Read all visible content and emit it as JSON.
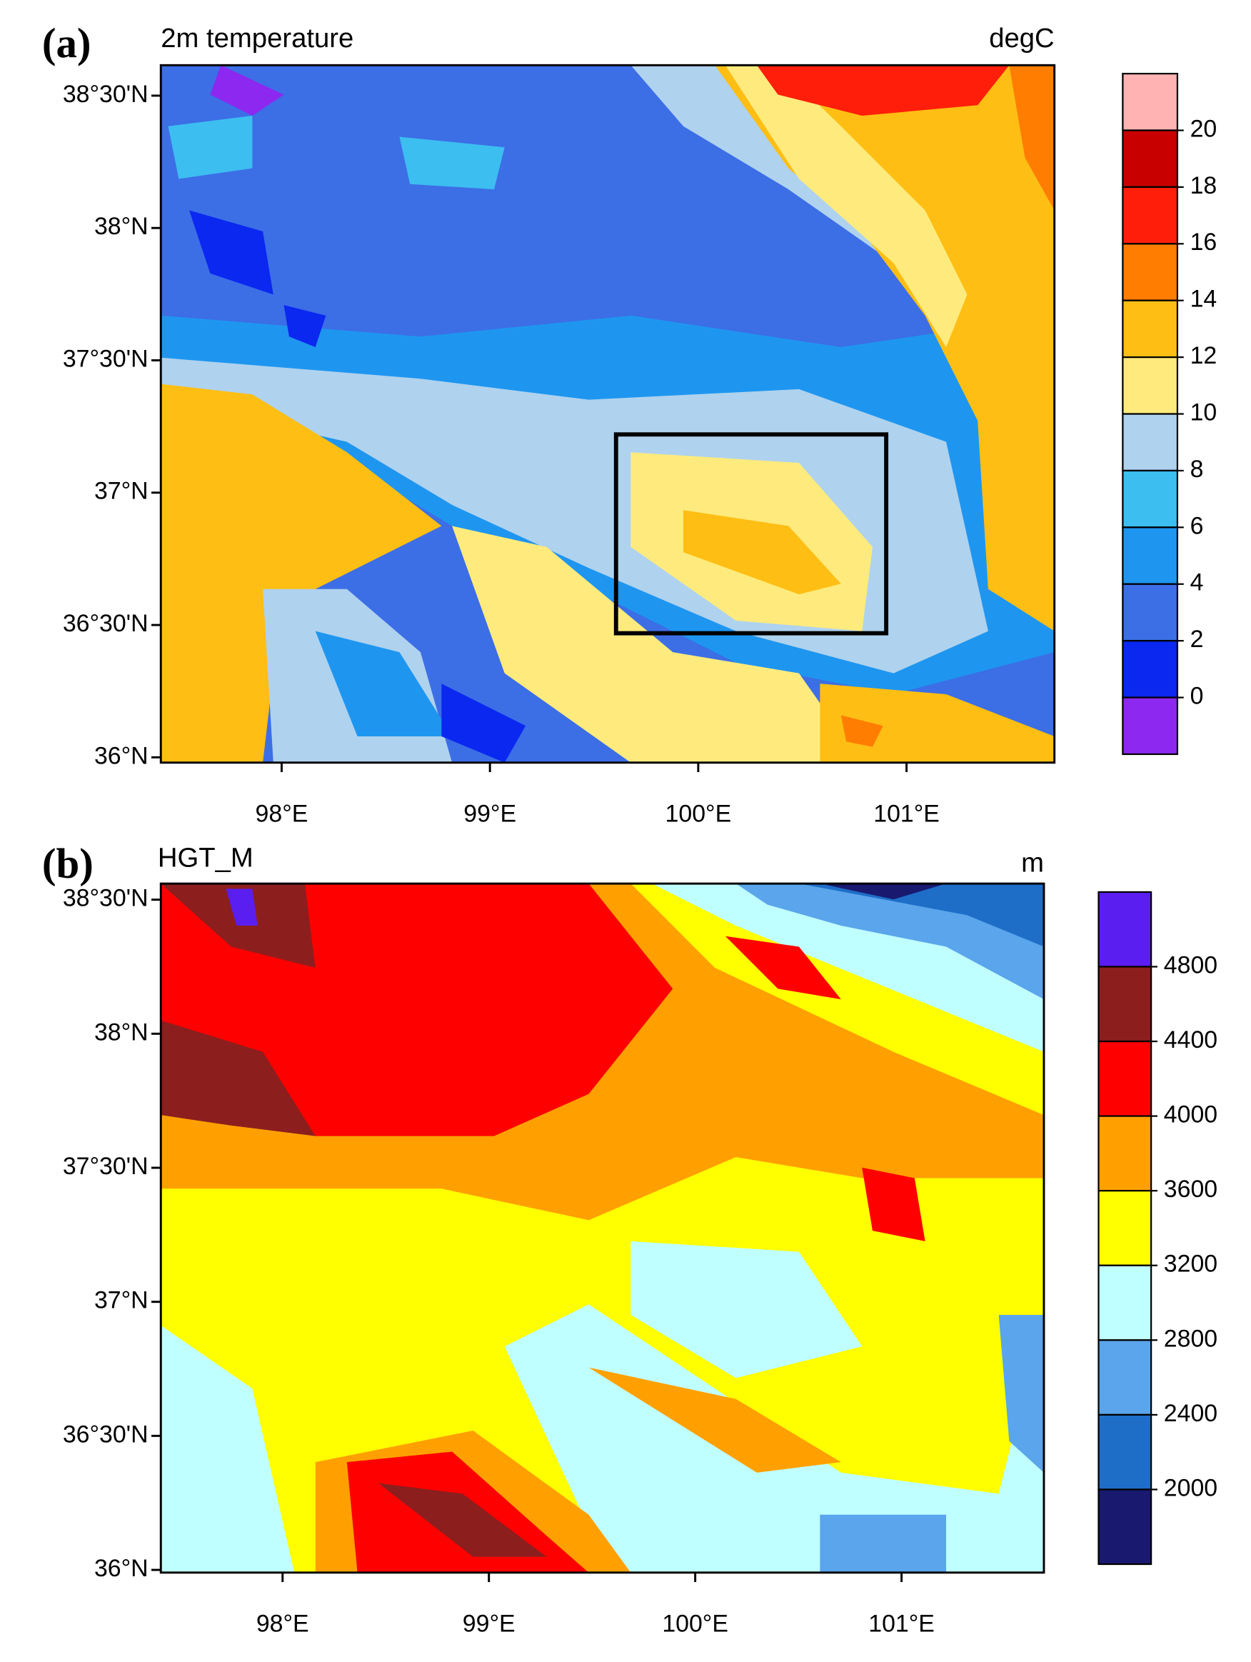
{
  "panels": [
    {
      "label": "(a)",
      "title": "2m temperature",
      "units": "degC",
      "xlim": [
        97.42,
        101.71
      ],
      "ylim": [
        35.98,
        38.615
      ],
      "xticks": [
        {
          "value": 98,
          "label": "98°E"
        },
        {
          "value": 99,
          "label": "99°E"
        },
        {
          "value": 100,
          "label": "100°E"
        },
        {
          "value": 101,
          "label": "101°E"
        }
      ],
      "yticks": [
        {
          "value": 36,
          "label": "36°N"
        },
        {
          "value": 36.5,
          "label": "36°30'N"
        },
        {
          "value": 37,
          "label": "37°N"
        },
        {
          "value": 37.5,
          "label": "37°30'N"
        },
        {
          "value": 38,
          "label": "38°N"
        },
        {
          "value": 38.5,
          "label": "38°30'N"
        }
      ],
      "colorbar": {
        "levels": [
          20,
          18,
          16,
          14,
          12,
          10,
          8,
          6,
          4,
          2,
          0
        ],
        "colors": [
          "#ffb3b3",
          "#c80000",
          "#ff1e0a",
          "#ff7d00",
          "#ffbe14",
          "#ffeb7d",
          "#afd2ee",
          "#3cbef0",
          "#1e96f0",
          "#3c6ee6",
          "#0a28f0",
          "#8c28f0"
        ]
      }
    },
    {
      "label": "(b)",
      "title": "HGT_M",
      "units": "m",
      "xlim": [
        97.41,
        101.69
      ],
      "ylim": [
        35.99,
        38.56
      ],
      "xticks": [
        {
          "value": 98,
          "label": "98°E"
        },
        {
          "value": 99,
          "label": "99°E"
        },
        {
          "value": 100,
          "label": "100°E"
        },
        {
          "value": 101,
          "label": "101°E"
        }
      ],
      "yticks": [
        {
          "value": 36,
          "label": "36°N"
        },
        {
          "value": 36.5,
          "label": "36°30'N"
        },
        {
          "value": 37,
          "label": "37°N"
        },
        {
          "value": 37.5,
          "label": "37°30'N"
        },
        {
          "value": 38,
          "label": "38°N"
        },
        {
          "value": 38.5,
          "label": "38°30'N"
        }
      ],
      "colorbar": {
        "levels": [
          4800,
          4400,
          4000,
          3600,
          3200,
          2800,
          2400,
          2000
        ],
        "colors": [
          "#5a1ef0",
          "#8c1e1e",
          "#ff0000",
          "#ffa000",
          "#ffff00",
          "#c0ffff",
          "#5aa5eb",
          "#1e6ec8",
          "#191970"
        ]
      }
    }
  ]
}
